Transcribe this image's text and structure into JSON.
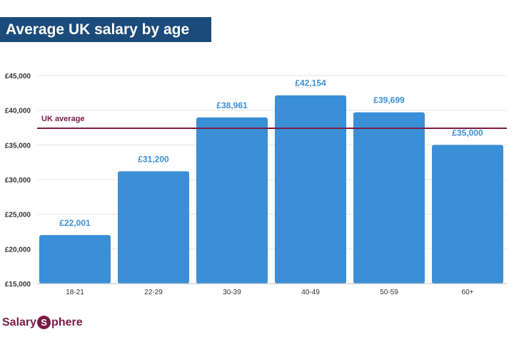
{
  "header": {
    "title": "Average UK salary by age"
  },
  "brand": {
    "logo_part1": "Salary",
    "logo_s": "S",
    "logo_part2": "phere",
    "color": "#7a1a45"
  },
  "chart_data": {
    "type": "bar",
    "title": "Average UK salary by age",
    "categories": [
      "18-21",
      "22-29",
      "30-39",
      "40-49",
      "50-59",
      "60+"
    ],
    "values": [
      22001,
      31200,
      38961,
      42154,
      39699,
      35000
    ],
    "value_labels": [
      "£22,001",
      "£31,200",
      "£38,961",
      "£42,154",
      "£39,699",
      "£35,000"
    ],
    "y_ticks": [
      15000,
      20000,
      25000,
      30000,
      35000,
      40000,
      45000
    ],
    "y_tick_labels": [
      "£15,000",
      "£20,000",
      "£25,000",
      "£30,000",
      "£35,000",
      "£40,000",
      "£45,000"
    ],
    "ylim": [
      15000,
      45000
    ],
    "grid": true,
    "bar_color": "#3a8fd6",
    "label_color": "#3a8fd6",
    "reference_line": {
      "label": "UK average",
      "value": 37400,
      "color": "#7a1a45"
    }
  }
}
